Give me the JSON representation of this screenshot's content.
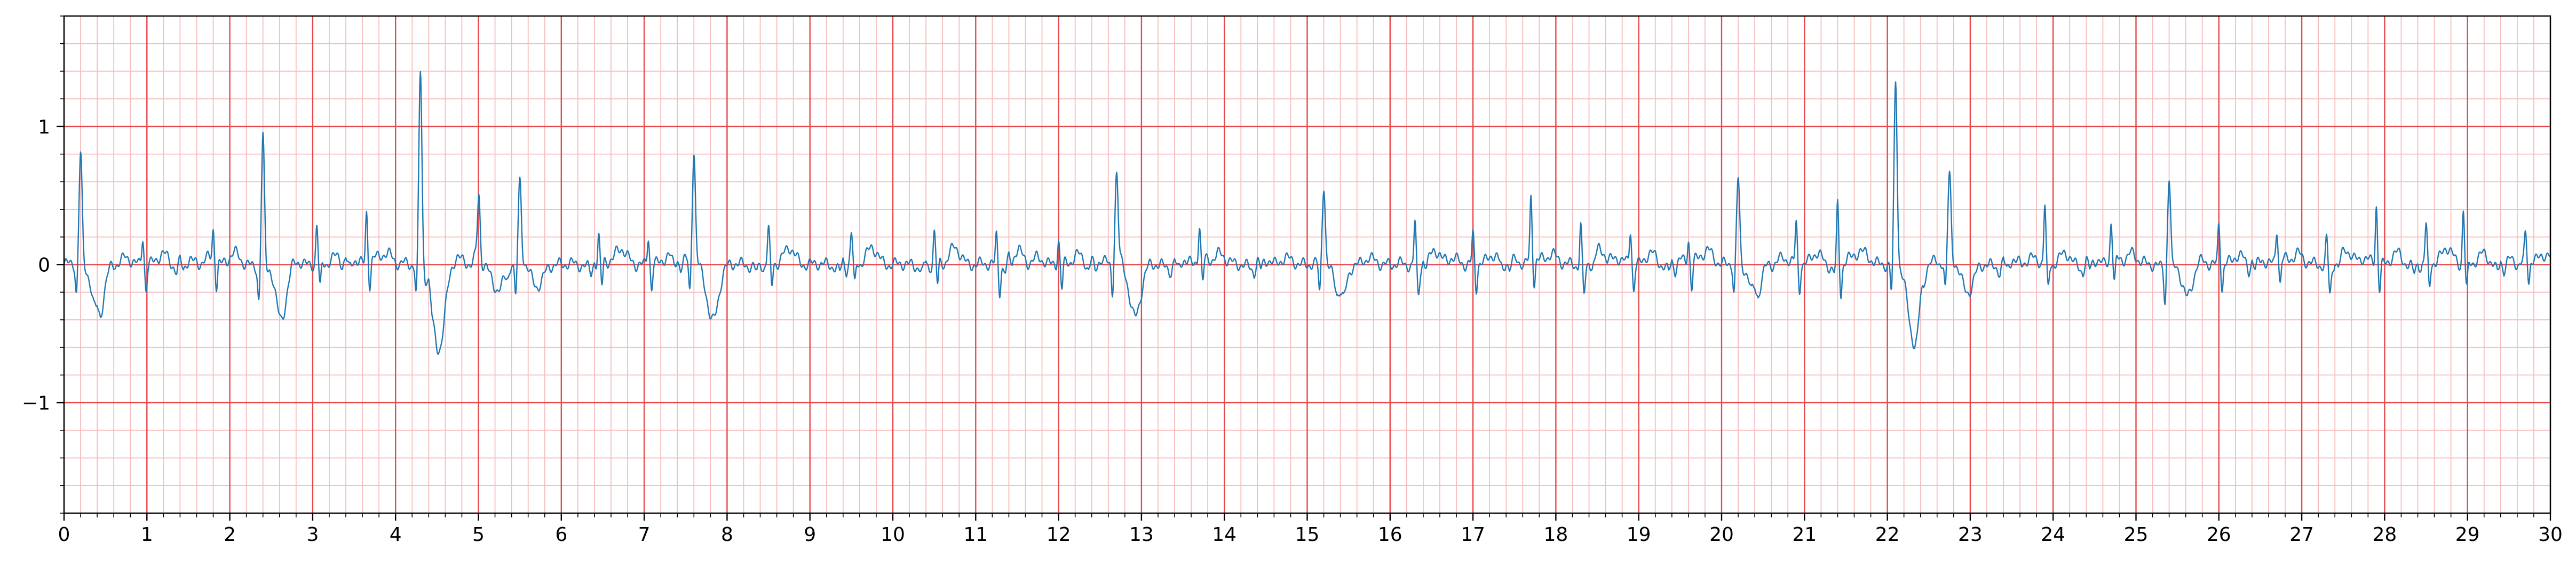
{
  "chart_data": {
    "type": "line",
    "title": "",
    "xlabel": "",
    "ylabel": "",
    "xlim": [
      0,
      30
    ],
    "ylim": [
      -1.8,
      1.8
    ],
    "x_ticks": [
      {
        "value": 0,
        "label": "0"
      },
      {
        "value": 1,
        "label": "1"
      },
      {
        "value": 2,
        "label": "2"
      },
      {
        "value": 3,
        "label": "3"
      },
      {
        "value": 4,
        "label": "4"
      },
      {
        "value": 5,
        "label": "5"
      },
      {
        "value": 6,
        "label": "6"
      },
      {
        "value": 7,
        "label": "7"
      },
      {
        "value": 8,
        "label": "8"
      },
      {
        "value": 9,
        "label": "9"
      },
      {
        "value": 10,
        "label": "10"
      },
      {
        "value": 11,
        "label": "11"
      },
      {
        "value": 12,
        "label": "12"
      },
      {
        "value": 13,
        "label": "13"
      },
      {
        "value": 14,
        "label": "14"
      },
      {
        "value": 15,
        "label": "15"
      },
      {
        "value": 16,
        "label": "16"
      },
      {
        "value": 17,
        "label": "17"
      },
      {
        "value": 18,
        "label": "18"
      },
      {
        "value": 19,
        "label": "19"
      },
      {
        "value": 20,
        "label": "20"
      },
      {
        "value": 21,
        "label": "21"
      },
      {
        "value": 22,
        "label": "22"
      },
      {
        "value": 23,
        "label": "23"
      },
      {
        "value": 24,
        "label": "24"
      },
      {
        "value": 25,
        "label": "25"
      },
      {
        "value": 26,
        "label": "26"
      },
      {
        "value": 27,
        "label": "27"
      },
      {
        "value": 28,
        "label": "28"
      },
      {
        "value": 29,
        "label": "29"
      },
      {
        "value": 30,
        "label": "30"
      }
    ],
    "y_ticks": [
      {
        "value": 1,
        "label": "1"
      },
      {
        "value": 0,
        "label": "0"
      },
      {
        "value": -1,
        "label": "−1"
      }
    ],
    "major_grid_step": {
      "x": 1,
      "y": 1
    },
    "minor_grid_step": {
      "x": 0.2,
      "y": 0.2
    },
    "grid": true,
    "legend": "none",
    "colors": {
      "line": "#1f77b4",
      "major_grid": "#e8484a",
      "minor_grid": "#f7bcbd",
      "axes": "#000000",
      "background": "#ffffff"
    },
    "baseline_shape": [
      [
        0.0,
        0.0
      ],
      [
        0.1,
        0.01
      ],
      [
        0.2,
        0.0
      ],
      [
        0.32,
        -0.02
      ],
      [
        0.36,
        -0.06
      ],
      [
        0.4,
        0.03
      ],
      [
        0.44,
        -0.04
      ],
      [
        0.48,
        0.02
      ],
      [
        0.52,
        0.04
      ],
      [
        0.56,
        0.02
      ],
      [
        0.62,
        0.0
      ],
      [
        0.68,
        0.03
      ],
      [
        0.74,
        0.05
      ],
      [
        0.82,
        0.03
      ],
      [
        0.9,
        0.0
      ],
      [
        1.0,
        0.0
      ]
    ],
    "series": [
      {
        "beats": [
          {
            "t": 0.2,
            "amp": 0.8,
            "depth": -0.35
          },
          {
            "t": 2.4,
            "amp": 0.9,
            "depth": -0.4
          },
          {
            "t": 4.3,
            "amp": 1.42,
            "depth": -0.65
          },
          {
            "t": 5.0,
            "amp": 0.62,
            "depth": -0.25
          },
          {
            "t": 5.5,
            "amp": 0.58,
            "depth": -0.2
          },
          {
            "t": 7.6,
            "amp": 0.82,
            "depth": -0.44
          },
          {
            "t": 12.7,
            "amp": 0.62,
            "depth": -0.38
          },
          {
            "t": 15.2,
            "amp": 0.58,
            "depth": -0.22
          },
          {
            "t": 20.2,
            "amp": 0.62,
            "depth": -0.2
          },
          {
            "t": 22.1,
            "amp": 1.32,
            "depth": -0.54
          },
          {
            "t": 22.75,
            "amp": 0.6,
            "depth": -0.2
          },
          {
            "t": 25.4,
            "amp": 0.6,
            "depth": -0.24
          }
        ],
        "minor_beats": [
          {
            "t": 0.95,
            "amp": 0.2
          },
          {
            "t": 1.8,
            "amp": 0.22
          },
          {
            "t": 3.05,
            "amp": 0.28
          },
          {
            "t": 3.65,
            "amp": 0.36
          },
          {
            "t": 4.95,
            "amp": 0.25
          },
          {
            "t": 6.45,
            "amp": 0.22
          },
          {
            "t": 7.05,
            "amp": 0.2
          },
          {
            "t": 8.5,
            "amp": 0.22
          },
          {
            "t": 9.5,
            "amp": 0.2
          },
          {
            "t": 10.5,
            "amp": 0.2
          },
          {
            "t": 11.25,
            "amp": 0.22
          },
          {
            "t": 12.0,
            "amp": 0.18
          },
          {
            "t": 13.7,
            "amp": 0.25
          },
          {
            "t": 16.3,
            "amp": 0.32
          },
          {
            "t": 17.0,
            "amp": 0.22
          },
          {
            "t": 17.7,
            "amp": 0.45
          },
          {
            "t": 18.3,
            "amp": 0.3
          },
          {
            "t": 18.9,
            "amp": 0.25
          },
          {
            "t": 19.6,
            "amp": 0.18
          },
          {
            "t": 20.9,
            "amp": 0.3
          },
          {
            "t": 21.4,
            "amp": 0.4
          },
          {
            "t": 23.9,
            "amp": 0.43
          },
          {
            "t": 24.7,
            "amp": 0.28
          },
          {
            "t": 26.0,
            "amp": 0.3
          },
          {
            "t": 26.7,
            "amp": 0.22
          },
          {
            "t": 27.3,
            "amp": 0.2
          },
          {
            "t": 27.9,
            "amp": 0.43
          },
          {
            "t": 28.5,
            "amp": 0.25
          },
          {
            "t": 28.95,
            "amp": 0.4
          },
          {
            "t": 29.7,
            "amp": 0.18
          }
        ]
      }
    ]
  }
}
